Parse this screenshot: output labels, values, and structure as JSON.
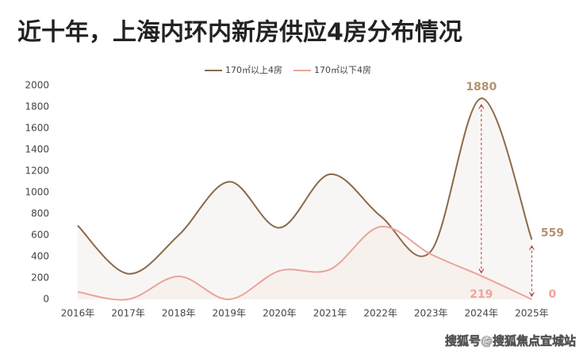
{
  "chart_data": {
    "type": "line",
    "title": "近十年，上海内环内新房供应4房分布情况",
    "categories": [
      "2016年",
      "2017年",
      "2018年",
      "2019年",
      "2020年",
      "2021年",
      "2022年",
      "2023年",
      "2024年",
      "2025年"
    ],
    "series": [
      {
        "name": "170㎡以上4房",
        "color": "#8b6a4a",
        "values": [
          690,
          240,
          600,
          1100,
          670,
          1170,
          780,
          450,
          1880,
          559
        ]
      },
      {
        "name": "170㎡以下4房",
        "color": "#eba39b",
        "values": [
          70,
          0,
          215,
          0,
          267,
          280,
          680,
          422,
          219,
          0
        ]
      }
    ],
    "ylim": [
      0,
      2000
    ],
    "yticks": [
      0,
      200,
      400,
      600,
      800,
      1000,
      1200,
      1400,
      1600,
      1800,
      2000
    ],
    "watermark": "搜狐号@搜狐焦点宜城站"
  }
}
